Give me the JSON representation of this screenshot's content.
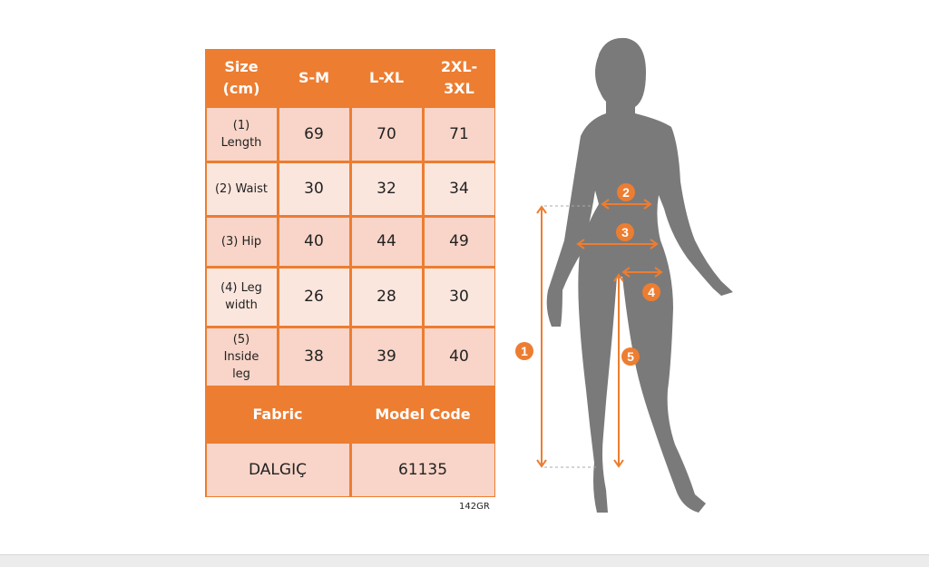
{
  "table": {
    "header": [
      "Size (cm)",
      "S-M",
      "L-XL",
      "2XL-3XL"
    ],
    "header_lines": [
      [
        "Size",
        "(cm)"
      ],
      [
        "S-M"
      ],
      [
        "L-XL"
      ],
      [
        "2XL-",
        "3XL"
      ]
    ],
    "rows": [
      {
        "label_lines": [
          "(1)",
          "Length"
        ],
        "values": [
          "69",
          "70",
          "71"
        ]
      },
      {
        "label_lines": [
          "(2) Waist"
        ],
        "values": [
          "30",
          "32",
          "34"
        ]
      },
      {
        "label_lines": [
          "(3) Hip"
        ],
        "values": [
          "40",
          "44",
          "49"
        ]
      },
      {
        "label_lines": [
          "(4) Leg",
          "width"
        ],
        "values": [
          "26",
          "28",
          "30"
        ]
      },
      {
        "label_lines": [
          "(5)",
          "Inside",
          "leg"
        ],
        "values": [
          "38",
          "39",
          "40"
        ]
      }
    ],
    "fabric_label": "Fabric",
    "model_code_label": "Model Code",
    "fabric_value": "DALGIÇ",
    "model_code_value": "61135"
  },
  "product_code": "142GR",
  "diagram": {
    "markers": [
      "1",
      "2",
      "3",
      "4",
      "5"
    ]
  },
  "colors": {
    "accent": "#ed7d31",
    "row_dark": "#f8d5c8",
    "row_light": "#fbe6de",
    "silhouette": "#7a7a7a"
  }
}
